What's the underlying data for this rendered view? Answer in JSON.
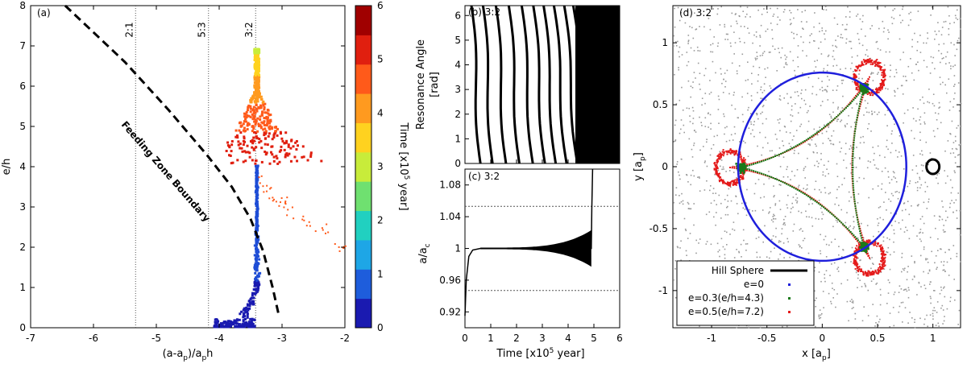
{
  "chart_data": [
    {
      "id": "a",
      "type": "scatter",
      "panel_label": "(a)",
      "xlabel": "(a-a",
      "xlabel_sub1": "p",
      "xlabel_mid": ")/a",
      "xlabel_sub2": "p",
      "xlabel_end": "h",
      "ylabel": "e/h",
      "xlim": [
        -7,
        -2
      ],
      "ylim": [
        0,
        8
      ],
      "xticks": [
        "-7",
        "-6",
        "-5",
        "-4",
        "-3",
        "-2"
      ],
      "yticks": [
        "0",
        "1",
        "2",
        "3",
        "4",
        "5",
        "6",
        "7",
        "8"
      ],
      "resonance_lines": [
        {
          "label": "2:1",
          "x": -5.33
        },
        {
          "label": "5:3",
          "x": -4.17
        },
        {
          "label": "3:2",
          "x": -3.42
        }
      ],
      "boundary_label": "Feeding Zone Boundary",
      "boundary_curve": [
        [
          -6.45,
          8
        ],
        [
          -5.5,
          6.6
        ],
        [
          -4.8,
          5.4
        ],
        [
          -4.2,
          4.3
        ],
        [
          -3.8,
          3.5
        ],
        [
          -3.5,
          2.7
        ],
        [
          -3.3,
          1.9
        ],
        [
          -3.15,
          1.0
        ],
        [
          -3.05,
          0.3
        ]
      ],
      "colorbar": {
        "label": "Time [x10",
        "label_exp": "5",
        "label_end": " year]",
        "range": [
          0,
          6
        ],
        "ticks": [
          "0",
          "1",
          "2",
          "3",
          "4",
          "5",
          "6"
        ],
        "colors": [
          "#1a1ab0",
          "#1e5ddc",
          "#1ea6e6",
          "#21d0c0",
          "#6fe070",
          "#c8ec3a",
          "#ffd21f",
          "#ff9a1f",
          "#ff5a1a",
          "#e01f0f",
          "#a00000"
        ]
      }
    },
    {
      "id": "b",
      "type": "line",
      "panel_label": "(b) 3:2",
      "ylabel": "Resonance Angle",
      "ylabel2": "[rad]",
      "xlim": [
        0,
        6
      ],
      "ylim": [
        0,
        6.4
      ],
      "yticks": [
        "0",
        "1",
        "2",
        "3",
        "4",
        "5",
        "6"
      ],
      "description_series": "resonance angle vs time, circulating then saturating near t=5"
    },
    {
      "id": "c",
      "type": "line",
      "panel_label": "(c) 3:2",
      "xlabel": "Time [x10",
      "xlabel_exp": "5",
      "xlabel_end": " year]",
      "ylabel": "a/a",
      "ylabel_sub": "c",
      "xlim": [
        0,
        6
      ],
      "ylim": [
        0.9,
        1.1
      ],
      "xticks": [
        "0",
        "1",
        "2",
        "3",
        "4",
        "5",
        "6"
      ],
      "yticks": [
        "0.92",
        "0.96",
        "1",
        "1.04",
        "1.08"
      ],
      "resonance_width": [
        0.947,
        1.053
      ],
      "series": [
        {
          "name": "a/ac",
          "x": [
            0,
            0.05,
            0.15,
            0.3,
            0.6,
            1.0,
            2.0,
            3.0,
            4.0,
            4.5,
            4.9,
            4.92,
            4.95
          ],
          "y": [
            0.915,
            0.96,
            0.99,
            0.998,
            1.0,
            1.0,
            1.0,
            1.0,
            1.0,
            1.0,
            1.0,
            1.05,
            1.1
          ]
        }
      ]
    },
    {
      "id": "d",
      "type": "scatter",
      "panel_label": "(d) 3:2",
      "xlabel": "x [a",
      "xlabel_sub": "p",
      "xlabel_end": "]",
      "ylabel": "y [a",
      "ylabel_sub": "p",
      "ylabel_end": "]",
      "xlim": [
        -1.35,
        1.25
      ],
      "ylim": [
        -1.3,
        1.3
      ],
      "xticks": [
        "-1",
        "-0.5",
        "0",
        "0.5",
        "1"
      ],
      "xtick_values": [
        -1,
        -0.5,
        0,
        0.5,
        1
      ],
      "yticks": [
        "-1",
        "-0.5",
        "0",
        "0.5",
        "1"
      ],
      "ytick_values": [
        -1,
        -0.5,
        0,
        0.5,
        1
      ],
      "circle_radius": 0.76,
      "legend": {
        "position": "bottom-left",
        "entries": [
          {
            "label": "Hill Sphere",
            "color": "#000000",
            "style": "line"
          },
          {
            "label": "e=0",
            "color": "#1f1fdc",
            "style": "point"
          },
          {
            "label": "e=0.3(e/h=4.3)",
            "color": "#1a7a1a",
            "style": "point"
          },
          {
            "label": "e=0.5(e/h=7.2)",
            "color": "#e41a1a",
            "style": "point"
          }
        ]
      }
    }
  ]
}
